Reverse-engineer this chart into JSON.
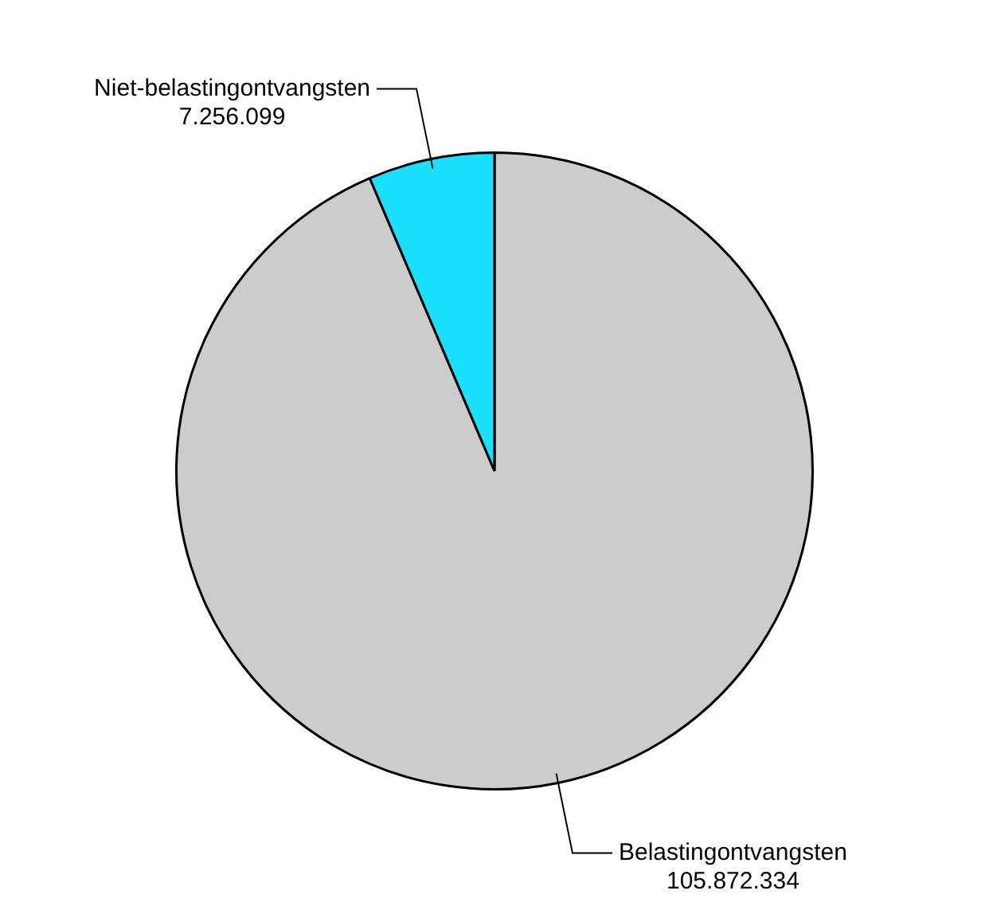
{
  "chart_data": {
    "type": "pie",
    "categories": [
      "Belastingontvangsten",
      "Niet-belastingontvangsten"
    ],
    "values": [
      105872334,
      7256099
    ],
    "value_labels": [
      "105.872.334",
      "7.256.099"
    ],
    "colors": [
      "#cccccc",
      "#1ae0ff"
    ],
    "legend": false
  }
}
